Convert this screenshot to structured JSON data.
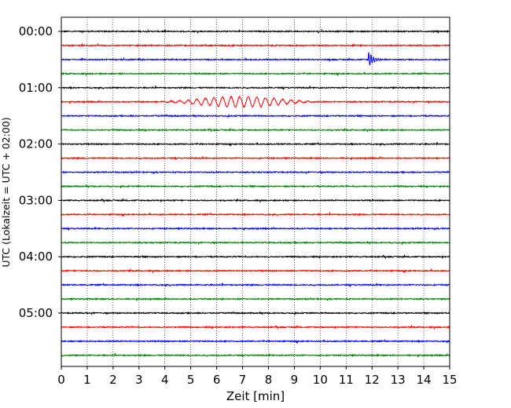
{
  "chart_data": {
    "type": "line",
    "plot_kind": "helicorder",
    "xlabel": "Zeit  [min]",
    "ylabel": "UTC (Lokalzeit = UTC + 02:00)",
    "xlim": [
      0,
      15
    ],
    "x_ticks": [
      "0",
      "1",
      "2",
      "3",
      "4",
      "5",
      "6",
      "7",
      "8",
      "9",
      "10",
      "11",
      "12",
      "13",
      "14",
      "15"
    ],
    "y_ticks": [
      "00:00",
      "01:00",
      "02:00",
      "03:00",
      "04:00",
      "05:00"
    ],
    "grid": "vertical dotted lines at each minute",
    "trace_interval_minutes": 15,
    "trace_count": 24,
    "trace_colors": [
      "#000000",
      "#ff0000",
      "#0000ff",
      "#008000"
    ],
    "events": [
      {
        "trace_index": 2,
        "start_minute": 11.85,
        "duration_minutes": 0.9,
        "peak_amplitude": 1.0,
        "type": "spike"
      },
      {
        "trace_index": 5,
        "start_minute": 3.5,
        "duration_minutes": 6.5,
        "peak_amplitude": 0.55,
        "type": "wave-train"
      }
    ]
  }
}
